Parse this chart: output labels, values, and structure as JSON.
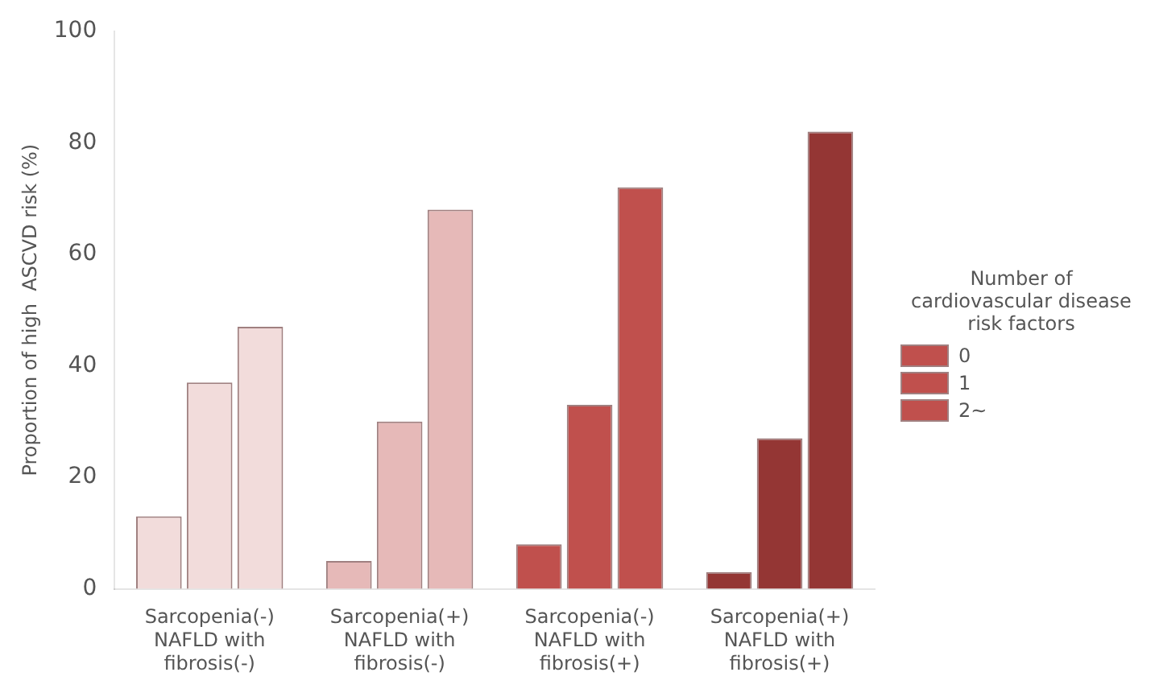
{
  "chart_data": {
    "type": "bar",
    "ylabel": "Proportion of high  ASCVD risk (%)",
    "legend_title": "Number of cardiovascular disease risk factors",
    "categories": [
      "Sarcopenia(-) NAFLD with fibrosis(-)",
      "Sarcopenia(+) NAFLD with fibrosis(-)",
      "Sarcopenia(-) NAFLD with fibrosis(+)",
      "Sarcopenia(+) NAFLD with fibrosis(+)"
    ],
    "series": [
      {
        "name": "0",
        "colors": [
          "#f2dcdb",
          "#e6b9b8",
          "#c0504d",
          "#943634"
        ],
        "values": [
          13,
          5,
          8,
          3
        ]
      },
      {
        "name": "1",
        "colors": [
          "#f2dcdb",
          "#e6b9b8",
          "#c0504d",
          "#943634"
        ],
        "values": [
          37,
          30,
          33,
          27
        ]
      },
      {
        "name": "2~",
        "colors": [
          "#f2dcdb",
          "#e6b9b8",
          "#c0504d",
          "#943634"
        ],
        "values": [
          47,
          68,
          72,
          82
        ]
      }
    ],
    "ylim": [
      0,
      100
    ],
    "yticks": [
      0,
      20,
      40,
      60,
      80,
      100
    ],
    "legend": "right"
  }
}
